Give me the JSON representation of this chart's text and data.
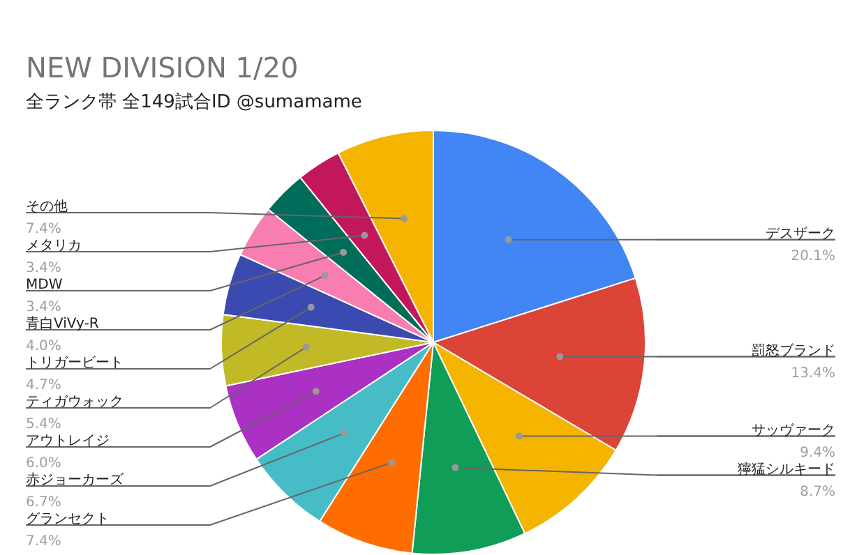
{
  "chart_data": {
    "type": "pie",
    "title": "NEW DIVISION 1/20",
    "subtitle": "全ランク帯 全149試合ID @sumamame",
    "categories": [
      "デスザーク",
      "罰怒ブランド",
      "サッヴァーク",
      "獰猛シルキード",
      "グランセクト",
      "赤ジョーカーズ",
      "アウトレイジ",
      "ティガウォック",
      "トリガービート",
      "青白ViVy-R",
      "MDW",
      "メタリカ",
      "その他"
    ],
    "values": [
      20.1,
      13.4,
      9.4,
      8.7,
      7.4,
      6.7,
      6.0,
      5.4,
      4.7,
      4.0,
      3.4,
      3.4,
      7.4
    ],
    "value_labels": [
      "20.1%",
      "13.4%",
      "9.4%",
      "8.7%",
      "7.4%",
      "6.7%",
      "6.0%",
      "5.4%",
      "4.7%",
      "4.0%",
      "3.4%",
      "3.4%",
      "7.4%"
    ],
    "colors": [
      "#4285f4",
      "#db4437",
      "#f4b400",
      "#0f9d58",
      "#ff6d01",
      "#46bdc6",
      "#ab30c4",
      "#c1ba26",
      "#3b4ab1",
      "#f87db0",
      "#006d5a",
      "#c2185b",
      "#f4b400"
    ]
  }
}
